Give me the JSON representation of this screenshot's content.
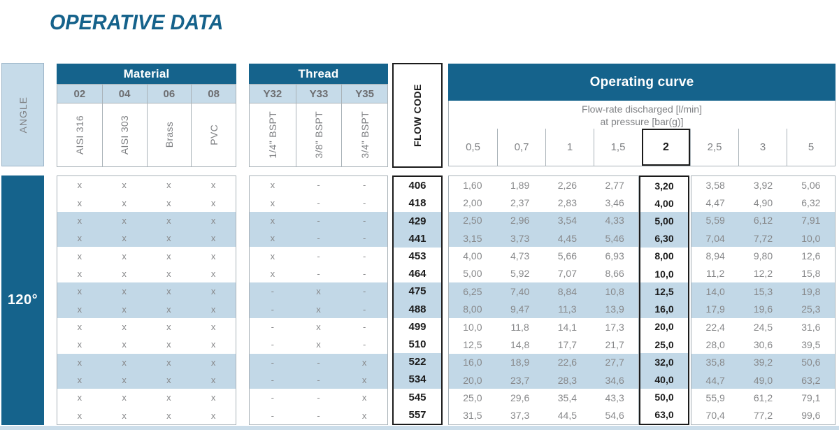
{
  "title": "OPERATIVE DATA",
  "angle": {
    "header": "ANGLE",
    "value": "120°"
  },
  "material": {
    "header": "Material",
    "codes": [
      "02",
      "04",
      "06",
      "08"
    ],
    "names": [
      "AISI 316",
      "AISI 303",
      "Brass",
      "PVC"
    ]
  },
  "thread": {
    "header": "Thread",
    "codes": [
      "Y32",
      "Y33",
      "Y35"
    ],
    "names": [
      "1/4\" BSPT",
      "3/8\" BSPT",
      "3/4\" BSPT"
    ]
  },
  "flow_code": {
    "header": "FLOW CODE"
  },
  "operating_curve": {
    "header": "Operating curve",
    "subtitle_line1": "Flow-rate discharged [l/min]",
    "subtitle_line2": "at pressure [bar(g)]",
    "pressures": [
      "0,5",
      "0,7",
      "1",
      "1,5",
      "2",
      "2,5",
      "3",
      "5"
    ],
    "highlight_pressure": "2"
  },
  "rows": [
    {
      "shaded": false,
      "material": [
        "x",
        "x",
        "x",
        "x"
      ],
      "thread": [
        "x",
        "-",
        "-"
      ],
      "flow_code": "406",
      "values": [
        "1,60",
        "1,89",
        "2,26",
        "2,77",
        "3,20",
        "3,58",
        "3,92",
        "5,06"
      ]
    },
    {
      "shaded": false,
      "material": [
        "x",
        "x",
        "x",
        "x"
      ],
      "thread": [
        "x",
        "-",
        "-"
      ],
      "flow_code": "418",
      "values": [
        "2,00",
        "2,37",
        "2,83",
        "3,46",
        "4,00",
        "4,47",
        "4,90",
        "6,32"
      ]
    },
    {
      "shaded": true,
      "material": [
        "x",
        "x",
        "x",
        "x"
      ],
      "thread": [
        "x",
        "-",
        "-"
      ],
      "flow_code": "429",
      "values": [
        "2,50",
        "2,96",
        "3,54",
        "4,33",
        "5,00",
        "5,59",
        "6,12",
        "7,91"
      ]
    },
    {
      "shaded": true,
      "material": [
        "x",
        "x",
        "x",
        "x"
      ],
      "thread": [
        "x",
        "-",
        "-"
      ],
      "flow_code": "441",
      "values": [
        "3,15",
        "3,73",
        "4,45",
        "5,46",
        "6,30",
        "7,04",
        "7,72",
        "10,0"
      ]
    },
    {
      "shaded": false,
      "material": [
        "x",
        "x",
        "x",
        "x"
      ],
      "thread": [
        "x",
        "-",
        "-"
      ],
      "flow_code": "453",
      "values": [
        "4,00",
        "4,73",
        "5,66",
        "6,93",
        "8,00",
        "8,94",
        "9,80",
        "12,6"
      ]
    },
    {
      "shaded": false,
      "material": [
        "x",
        "x",
        "x",
        "x"
      ],
      "thread": [
        "x",
        "-",
        "-"
      ],
      "flow_code": "464",
      "values": [
        "5,00",
        "5,92",
        "7,07",
        "8,66",
        "10,0",
        "11,2",
        "12,2",
        "15,8"
      ]
    },
    {
      "shaded": true,
      "material": [
        "x",
        "x",
        "x",
        "x"
      ],
      "thread": [
        "-",
        "x",
        "-"
      ],
      "flow_code": "475",
      "values": [
        "6,25",
        "7,40",
        "8,84",
        "10,8",
        "12,5",
        "14,0",
        "15,3",
        "19,8"
      ]
    },
    {
      "shaded": true,
      "material": [
        "x",
        "x",
        "x",
        "x"
      ],
      "thread": [
        "-",
        "x",
        "-"
      ],
      "flow_code": "488",
      "values": [
        "8,00",
        "9,47",
        "11,3",
        "13,9",
        "16,0",
        "17,9",
        "19,6",
        "25,3"
      ]
    },
    {
      "shaded": false,
      "material": [
        "x",
        "x",
        "x",
        "x"
      ],
      "thread": [
        "-",
        "x",
        "-"
      ],
      "flow_code": "499",
      "values": [
        "10,0",
        "11,8",
        "14,1",
        "17,3",
        "20,0",
        "22,4",
        "24,5",
        "31,6"
      ]
    },
    {
      "shaded": false,
      "material": [
        "x",
        "x",
        "x",
        "x"
      ],
      "thread": [
        "-",
        "x",
        "-"
      ],
      "flow_code": "510",
      "values": [
        "12,5",
        "14,8",
        "17,7",
        "21,7",
        "25,0",
        "28,0",
        "30,6",
        "39,5"
      ]
    },
    {
      "shaded": true,
      "material": [
        "x",
        "x",
        "x",
        "x"
      ],
      "thread": [
        "-",
        "-",
        "x"
      ],
      "flow_code": "522",
      "values": [
        "16,0",
        "18,9",
        "22,6",
        "27,7",
        "32,0",
        "35,8",
        "39,2",
        "50,6"
      ]
    },
    {
      "shaded": true,
      "material": [
        "x",
        "x",
        "x",
        "x"
      ],
      "thread": [
        "-",
        "-",
        "x"
      ],
      "flow_code": "534",
      "values": [
        "20,0",
        "23,7",
        "28,3",
        "34,6",
        "40,0",
        "44,7",
        "49,0",
        "63,2"
      ]
    },
    {
      "shaded": false,
      "material": [
        "x",
        "x",
        "x",
        "x"
      ],
      "thread": [
        "-",
        "-",
        "x"
      ],
      "flow_code": "545",
      "values": [
        "25,0",
        "29,6",
        "35,4",
        "43,3",
        "50,0",
        "55,9",
        "61,2",
        "79,1"
      ]
    },
    {
      "shaded": false,
      "material": [
        "x",
        "x",
        "x",
        "x"
      ],
      "thread": [
        "-",
        "-",
        "x"
      ],
      "flow_code": "557",
      "values": [
        "31,5",
        "37,3",
        "44,5",
        "54,6",
        "63,0",
        "70,4",
        "77,2",
        "99,6"
      ]
    }
  ],
  "colors": {
    "dark_blue": "#15638C",
    "light_blue": "#C6DBE9",
    "row_shade": "#C2D8E7",
    "border_gray": "#A9B2B8",
    "text_gray": "#87888A",
    "black": "#1B1B1B"
  }
}
